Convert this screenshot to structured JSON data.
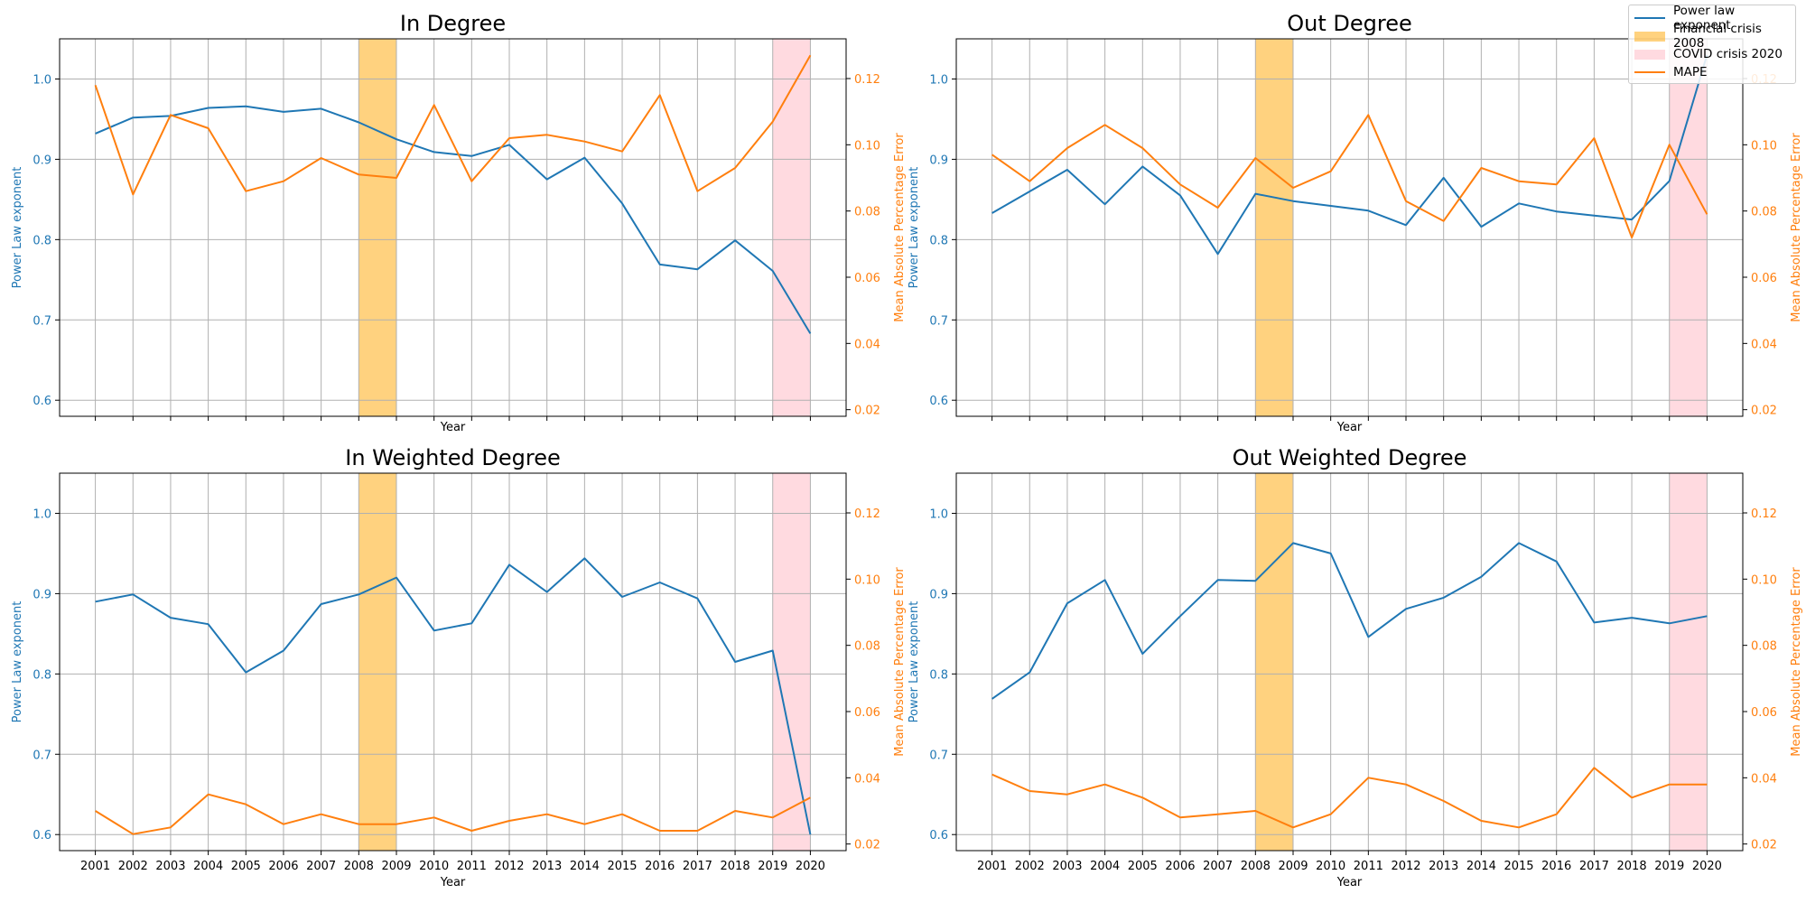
{
  "legend": {
    "power_law": "Power law exponent",
    "financial": "Financial crisis 2008",
    "covid": "COVID crisis 2020",
    "mape": "MAPE"
  },
  "colors": {
    "power_law": "#1f77b4",
    "mape": "#ff7f0e",
    "financial": "#ffa500",
    "covid": "#ffb6c1",
    "grid": "#b0b0b0"
  },
  "chart_data": [
    {
      "type": "line",
      "title": "In Degree",
      "xlabel": "Year",
      "ylabel": "Power Law exponent",
      "ylabel_right": "Mean Absolute Percentage Error",
      "show_xticklabels": false,
      "x": [
        2001,
        2002,
        2003,
        2004,
        2005,
        2006,
        2007,
        2008,
        2009,
        2010,
        2011,
        2012,
        2013,
        2014,
        2015,
        2016,
        2017,
        2018,
        2019,
        2020
      ],
      "series": [
        {
          "name": "Power law exponent",
          "axis": "left",
          "values": [
            0.932,
            0.952,
            0.954,
            0.964,
            0.966,
            0.959,
            0.963,
            0.946,
            0.925,
            0.909,
            0.904,
            0.918,
            0.875,
            0.902,
            0.845,
            0.769,
            0.763,
            0.799,
            0.761,
            0.683
          ]
        },
        {
          "name": "MAPE",
          "axis": "right",
          "values": [
            0.118,
            0.085,
            0.109,
            0.105,
            0.086,
            0.089,
            0.096,
            0.091,
            0.09,
            0.112,
            0.089,
            0.102,
            0.103,
            0.101,
            0.098,
            0.115,
            0.086,
            0.093,
            0.107,
            0.127
          ]
        }
      ],
      "ylim": [
        0.58,
        1.05
      ],
      "ylim_right": [
        0.018,
        0.132
      ],
      "yticks": [
        "0.6",
        "0.7",
        "0.8",
        "0.9",
        "1.0"
      ],
      "yticks_right": [
        "0.02",
        "0.04",
        "0.06",
        "0.08",
        "0.10",
        "0.12"
      ],
      "shaded": [
        {
          "name": "Financial crisis 2008",
          "from": 2008,
          "to": 2009
        },
        {
          "name": "COVID crisis 2020",
          "from": 2019,
          "to": 2020
        }
      ],
      "grid": true
    },
    {
      "type": "line",
      "title": "Out Degree",
      "xlabel": "Year",
      "ylabel": "Power Law exponent",
      "ylabel_right": "Mean Absolute Percentage Error",
      "show_xticklabels": false,
      "x": [
        2001,
        2002,
        2003,
        2004,
        2005,
        2006,
        2007,
        2008,
        2009,
        2010,
        2011,
        2012,
        2013,
        2014,
        2015,
        2016,
        2017,
        2018,
        2019,
        2020
      ],
      "series": [
        {
          "name": "Power law exponent",
          "axis": "left",
          "values": [
            0.833,
            0.86,
            0.887,
            0.844,
            0.891,
            0.855,
            0.782,
            0.857,
            0.848,
            0.842,
            0.836,
            0.818,
            0.877,
            0.816,
            0.845,
            0.835,
            0.83,
            0.825,
            0.873,
            1.03
          ]
        },
        {
          "name": "MAPE",
          "axis": "right",
          "values": [
            0.097,
            0.089,
            0.099,
            0.106,
            0.099,
            0.088,
            0.081,
            0.096,
            0.087,
            0.092,
            0.109,
            0.083,
            0.077,
            0.093,
            0.089,
            0.088,
            0.102,
            0.072,
            0.1,
            0.079
          ]
        }
      ],
      "ylim": [
        0.58,
        1.05
      ],
      "ylim_right": [
        0.018,
        0.132
      ],
      "yticks": [
        "0.6",
        "0.7",
        "0.8",
        "0.9",
        "1.0"
      ],
      "yticks_right": [
        "0.02",
        "0.04",
        "0.06",
        "0.08",
        "0.10",
        "0.12"
      ],
      "shaded": [
        {
          "name": "Financial crisis 2008",
          "from": 2008,
          "to": 2009
        },
        {
          "name": "COVID crisis 2020",
          "from": 2019,
          "to": 2020
        }
      ],
      "grid": true
    },
    {
      "type": "line",
      "title": "In Weighted Degree",
      "xlabel": "Year",
      "ylabel": "Power Law exponent",
      "ylabel_right": "Mean Absolute Percentage Error",
      "show_xticklabels": true,
      "x": [
        2001,
        2002,
        2003,
        2004,
        2005,
        2006,
        2007,
        2008,
        2009,
        2010,
        2011,
        2012,
        2013,
        2014,
        2015,
        2016,
        2017,
        2018,
        2019,
        2020
      ],
      "series": [
        {
          "name": "Power law exponent",
          "axis": "left",
          "values": [
            0.89,
            0.899,
            0.87,
            0.862,
            0.802,
            0.829,
            0.887,
            0.899,
            0.92,
            0.854,
            0.863,
            0.936,
            0.902,
            0.944,
            0.896,
            0.914,
            0.894,
            0.815,
            0.829,
            0.6
          ]
        },
        {
          "name": "MAPE",
          "axis": "right",
          "values": [
            0.03,
            0.023,
            0.025,
            0.035,
            0.032,
            0.026,
            0.029,
            0.026,
            0.026,
            0.028,
            0.024,
            0.027,
            0.029,
            0.026,
            0.029,
            0.024,
            0.024,
            0.03,
            0.028,
            0.034
          ]
        }
      ],
      "ylim": [
        0.58,
        1.05
      ],
      "ylim_right": [
        0.018,
        0.132
      ],
      "yticks": [
        "0.6",
        "0.7",
        "0.8",
        "0.9",
        "1.0"
      ],
      "yticks_right": [
        "0.02",
        "0.04",
        "0.06",
        "0.08",
        "0.10",
        "0.12"
      ],
      "shaded": [
        {
          "name": "Financial crisis 2008",
          "from": 2008,
          "to": 2009
        },
        {
          "name": "COVID crisis 2020",
          "from": 2019,
          "to": 2020
        }
      ],
      "grid": true
    },
    {
      "type": "line",
      "title": "Out Weighted Degree",
      "xlabel": "Year",
      "ylabel": "Power Law exponent",
      "ylabel_right": "Mean Absolute Percentage Error",
      "show_xticklabels": true,
      "x": [
        2001,
        2002,
        2003,
        2004,
        2005,
        2006,
        2007,
        2008,
        2009,
        2010,
        2011,
        2012,
        2013,
        2014,
        2015,
        2016,
        2017,
        2018,
        2019,
        2020
      ],
      "series": [
        {
          "name": "Power law exponent",
          "axis": "left",
          "values": [
            0.769,
            0.802,
            0.888,
            0.917,
            0.825,
            0.872,
            0.917,
            0.916,
            0.963,
            0.95,
            0.846,
            0.881,
            0.895,
            0.921,
            0.963,
            0.94,
            0.864,
            0.87,
            0.863,
            0.872
          ]
        },
        {
          "name": "MAPE",
          "axis": "right",
          "values": [
            0.041,
            0.036,
            0.035,
            0.038,
            0.034,
            0.028,
            0.029,
            0.03,
            0.025,
            0.029,
            0.04,
            0.038,
            0.033,
            0.027,
            0.025,
            0.029,
            0.043,
            0.034,
            0.038,
            0.038
          ]
        }
      ],
      "ylim": [
        0.58,
        1.05
      ],
      "ylim_right": [
        0.018,
        0.132
      ],
      "yticks": [
        "0.6",
        "0.7",
        "0.8",
        "0.9",
        "1.0"
      ],
      "yticks_right": [
        "0.02",
        "0.04",
        "0.06",
        "0.08",
        "0.10",
        "0.12"
      ],
      "shaded": [
        {
          "name": "Financial crisis 2008",
          "from": 2008,
          "to": 2009
        },
        {
          "name": "COVID crisis 2020",
          "from": 2019,
          "to": 2020
        }
      ],
      "grid": true
    }
  ]
}
